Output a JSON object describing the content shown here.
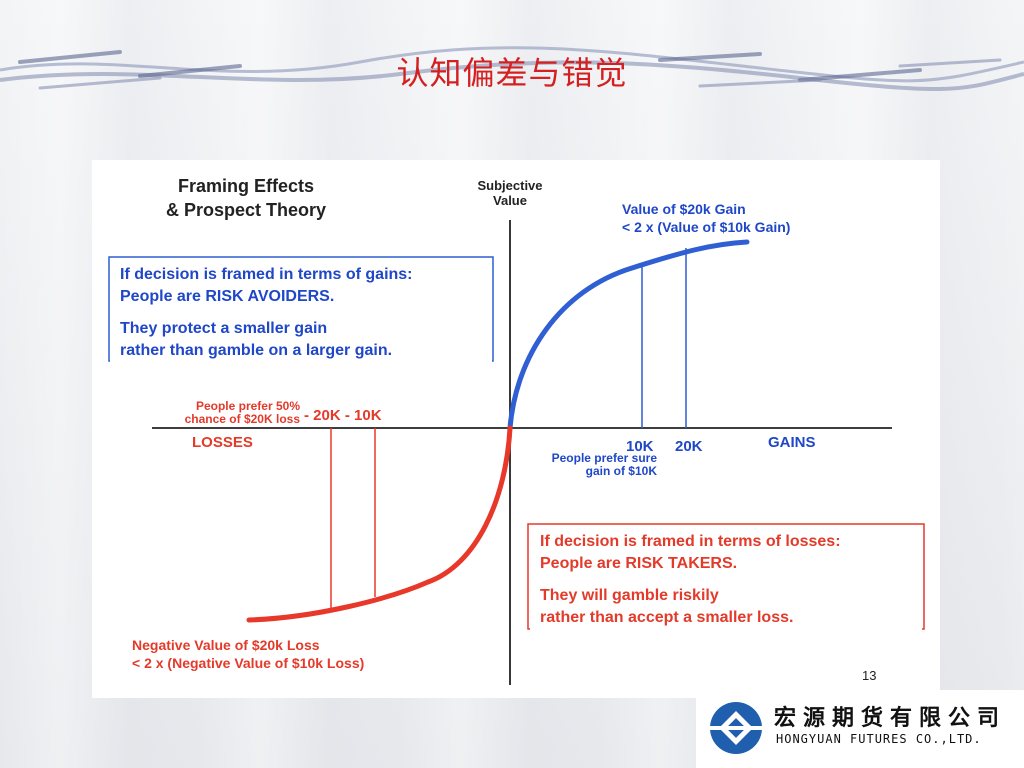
{
  "slide": {
    "title": "认知偏差与错觉"
  },
  "diagram": {
    "heading_line1": "Framing Effects",
    "heading_line2": "& Prospect Theory",
    "y_axis_label_line1": "Subjective",
    "y_axis_label_line2": "Value",
    "gain_note_line1": "Value of $20k Gain",
    "gain_note_line2": "< 2 x (Value of $10k Gain)",
    "gains_box": {
      "line1": "If decision is framed in terms of gains:",
      "line2": "People are RISK AVOIDERS.",
      "line3": "They protect a smaller gain",
      "line4": "rather than gamble on a larger gain."
    },
    "loss_pref_line1": "People prefer 50%",
    "loss_pref_line2": "chance of $20K loss",
    "loss_ticks": "- 20K - 10K",
    "losses_label": "LOSSES",
    "tick_10k": "10K",
    "tick_20k": "20K",
    "gains_label": "GAINS",
    "gain_pref_line1": "People prefer sure",
    "gain_pref_line2": "gain of $10K",
    "losses_box": {
      "line1": "If decision is framed in terms of losses:",
      "line2": "People are RISK TAKERS.",
      "line3": "They will gamble riskily",
      "line4": "rather than accept a smaller loss."
    },
    "loss_note_line1": "Negative Value of $20k Loss",
    "loss_note_line2": "< 2 x (Negative Value of $10k Loss)",
    "page_number": "13",
    "colors": {
      "gain_curve": "#2f5fd3",
      "loss_curve": "#e8382a",
      "axes": "#222222"
    }
  },
  "logo": {
    "company_cn": "宏源期货有限公司",
    "company_en": "HONGYUAN FUTURES CO.,LTD."
  }
}
